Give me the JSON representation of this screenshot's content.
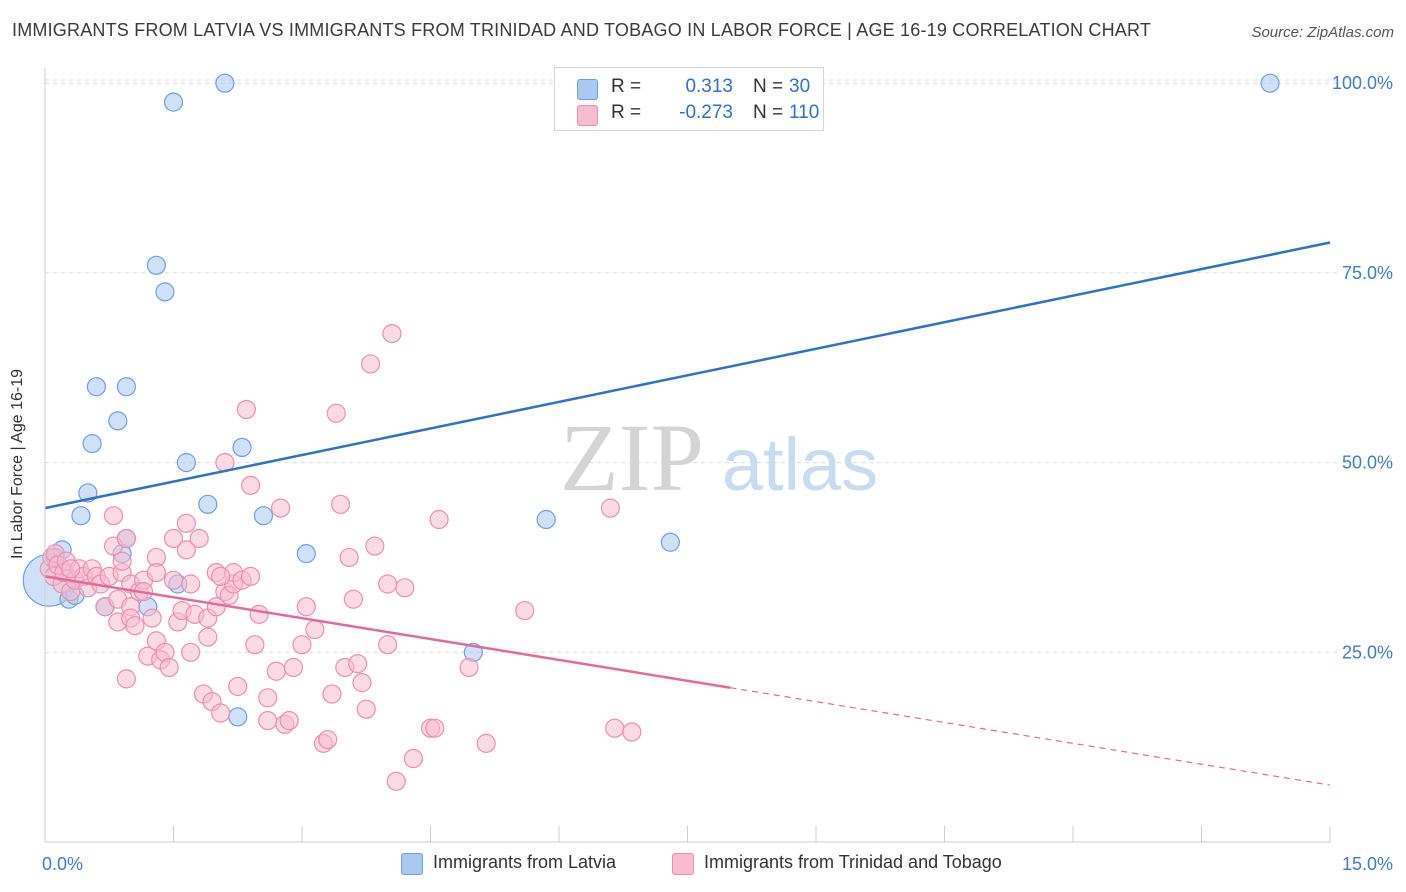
{
  "header": {
    "title": "IMMIGRANTS FROM LATVIA VS IMMIGRANTS FROM TRINIDAD AND TOBAGO IN LABOR FORCE | AGE 16-19 CORRELATION CHART",
    "source": "Source: ZipAtlas.com"
  },
  "watermark": {
    "zip": "ZIP",
    "atlas": "atlas"
  },
  "legend": {
    "rows": [
      {
        "r_label": "R =",
        "r_value": "0.313",
        "n_label": "N =",
        "n_value": "30",
        "color": "#6f9fe0"
      },
      {
        "r_label": "R =",
        "r_value": "-0.273",
        "n_label": "N =",
        "n_value": "110",
        "color": "#ee8cae"
      }
    ]
  },
  "colors": {
    "latvia_fill": "#aac8f0",
    "latvia_stroke": "#6f9fe0",
    "latvia_line": "#2f72cc",
    "trinidad_fill": "#f6bcd0",
    "trinidad_stroke": "#ec8fb0",
    "trinidad_line": "#e5699a",
    "grid": "#dcdcdc",
    "tick_label": "#3f7bd0"
  },
  "chart_data": {
    "type": "scatter",
    "title": "IMMIGRANTS FROM LATVIA VS IMMIGRANTS FROM TRINIDAD AND TOBAGO IN LABOR FORCE | AGE 16-19 CORRELATION CHART",
    "xlabel": "",
    "ylabel": "In Labor Force | Age 16-19",
    "xlim": [
      0,
      15
    ],
    "ylim": [
      0,
      102
    ],
    "x_tick_labels": [
      "0.0%",
      "15.0%"
    ],
    "y_ticks": [
      25,
      50,
      75,
      100
    ],
    "y_tick_labels": [
      "25.0%",
      "50.0%",
      "75.0%",
      "100.0%"
    ],
    "grid": true,
    "legend_position": "top-center",
    "series": [
      {
        "name": "Immigrants from Latvia",
        "R": 0.313,
        "N": 30,
        "trend": {
          "x": [
            0,
            15
          ],
          "y": [
            44.0,
            79.0
          ],
          "dashed_from": null
        },
        "points": [
          [
            0.05,
            34.5,
            26
          ],
          [
            0.12,
            37.5,
            9
          ],
          [
            0.2,
            38.5,
            9
          ],
          [
            0.28,
            32,
            9
          ],
          [
            0.35,
            32.5,
            9
          ],
          [
            0.42,
            43,
            9
          ],
          [
            0.5,
            46,
            9
          ],
          [
            0.55,
            52.5,
            9
          ],
          [
            0.6,
            60,
            9
          ],
          [
            0.7,
            31,
            9
          ],
          [
            0.85,
            55.5,
            9
          ],
          [
            0.9,
            38,
            9
          ],
          [
            0.95,
            40,
            9
          ],
          [
            0.95,
            60,
            9
          ],
          [
            1.2,
            31,
            9
          ],
          [
            1.3,
            76,
            9
          ],
          [
            1.4,
            72.5,
            9
          ],
          [
            1.5,
            97.5,
            9
          ],
          [
            1.55,
            34,
            9
          ],
          [
            1.65,
            50,
            9
          ],
          [
            1.9,
            44.5,
            9
          ],
          [
            2.1,
            100,
            9
          ],
          [
            2.25,
            16.5,
            9
          ],
          [
            2.3,
            52,
            9
          ],
          [
            2.55,
            43,
            9
          ],
          [
            3.05,
            38,
            9
          ],
          [
            5.0,
            25,
            9
          ],
          [
            5.85,
            42.5,
            9
          ],
          [
            7.3,
            39.5,
            9
          ],
          [
            14.3,
            100,
            9
          ]
        ]
      },
      {
        "name": "Immigrants from Trinidad and Tobago",
        "R": -0.273,
        "N": 110,
        "trend": {
          "x": [
            0,
            15
          ],
          "y": [
            35.0,
            7.5
          ],
          "dashed_from": 8.0
        },
        "points": [
          [
            0.05,
            36,
            9
          ],
          [
            0.08,
            37.5,
            9
          ],
          [
            0.1,
            35,
            9
          ],
          [
            0.12,
            38,
            9
          ],
          [
            0.15,
            36.5,
            9
          ],
          [
            0.2,
            34,
            9
          ],
          [
            0.22,
            35.5,
            9
          ],
          [
            0.25,
            37,
            9
          ],
          [
            0.3,
            33,
            9
          ],
          [
            0.35,
            34.5,
            9
          ],
          [
            0.4,
            36,
            9
          ],
          [
            0.45,
            35,
            9
          ],
          [
            0.5,
            33.5,
            9
          ],
          [
            0.55,
            36,
            9
          ],
          [
            0.6,
            35,
            9
          ],
          [
            0.65,
            34,
            9
          ],
          [
            0.7,
            31,
            9
          ],
          [
            0.75,
            35,
            9
          ],
          [
            0.8,
            39,
            9
          ],
          [
            0.8,
            43,
            9
          ],
          [
            0.85,
            32,
            9
          ],
          [
            0.85,
            29,
            9
          ],
          [
            0.9,
            35.5,
            9
          ],
          [
            0.9,
            37,
            9
          ],
          [
            0.95,
            21.5,
            9
          ],
          [
            0.95,
            40,
            9
          ],
          [
            1.0,
            34,
            9
          ],
          [
            1.0,
            31,
            9
          ],
          [
            1.0,
            29.5,
            9
          ],
          [
            1.05,
            28.5,
            9
          ],
          [
            1.1,
            33,
            9
          ],
          [
            1.15,
            34.5,
            9
          ],
          [
            1.15,
            33,
            9
          ],
          [
            1.2,
            24.5,
            9
          ],
          [
            1.25,
            29.5,
            9
          ],
          [
            1.3,
            26.5,
            9
          ],
          [
            1.3,
            37.5,
            9
          ],
          [
            1.3,
            35.5,
            9
          ],
          [
            1.35,
            24,
            9
          ],
          [
            1.4,
            25,
            9
          ],
          [
            1.45,
            23,
            9
          ],
          [
            1.5,
            40,
            9
          ],
          [
            1.5,
            34.5,
            9
          ],
          [
            1.55,
            29,
            9
          ],
          [
            1.6,
            30.5,
            9
          ],
          [
            1.65,
            42,
            9
          ],
          [
            1.65,
            38.5,
            9
          ],
          [
            1.7,
            34,
            9
          ],
          [
            1.7,
            25,
            9
          ],
          [
            1.75,
            30,
            9
          ],
          [
            1.8,
            40,
            9
          ],
          [
            1.85,
            19.5,
            9
          ],
          [
            1.9,
            29.5,
            9
          ],
          [
            1.9,
            27,
            9
          ],
          [
            1.95,
            18.5,
            9
          ],
          [
            2.0,
            31,
            9
          ],
          [
            2.0,
            35.5,
            9
          ],
          [
            2.05,
            17,
            9
          ],
          [
            2.1,
            50,
            9
          ],
          [
            2.1,
            33,
            9
          ],
          [
            2.15,
            32.5,
            9
          ],
          [
            2.2,
            34,
            9
          ],
          [
            2.2,
            35.5,
            9
          ],
          [
            2.25,
            20.5,
            9
          ],
          [
            2.3,
            34.5,
            9
          ],
          [
            2.35,
            57,
            9
          ],
          [
            2.4,
            47,
            9
          ],
          [
            2.4,
            35,
            9
          ],
          [
            2.45,
            26,
            9
          ],
          [
            2.5,
            30,
            9
          ],
          [
            2.6,
            16,
            9
          ],
          [
            2.6,
            19,
            9
          ],
          [
            2.7,
            22.5,
            9
          ],
          [
            2.75,
            44,
            9
          ],
          [
            2.8,
            15.5,
            9
          ],
          [
            2.85,
            16,
            9
          ],
          [
            2.9,
            23,
            9
          ],
          [
            3.0,
            26,
            9
          ],
          [
            3.05,
            31,
            9
          ],
          [
            3.15,
            28,
            9
          ],
          [
            3.25,
            13,
            9
          ],
          [
            3.3,
            13.5,
            9
          ],
          [
            3.35,
            19.5,
            9
          ],
          [
            3.4,
            56.5,
            9
          ],
          [
            3.45,
            44.5,
            9
          ],
          [
            3.5,
            23,
            9
          ],
          [
            3.55,
            37.5,
            9
          ],
          [
            3.6,
            32,
            9
          ],
          [
            3.65,
            23.5,
            9
          ],
          [
            3.7,
            21,
            9
          ],
          [
            3.75,
            17.5,
            9
          ],
          [
            3.8,
            63,
            9
          ],
          [
            3.85,
            39,
            9
          ],
          [
            4.0,
            26,
            9
          ],
          [
            4.0,
            34,
            9
          ],
          [
            4.05,
            67,
            9
          ],
          [
            4.1,
            8,
            9
          ],
          [
            4.2,
            33.5,
            9
          ],
          [
            4.3,
            11,
            9
          ],
          [
            4.5,
            15,
            9
          ],
          [
            4.55,
            15,
            9
          ],
          [
            4.6,
            42.5,
            9
          ],
          [
            4.95,
            23,
            9
          ],
          [
            5.15,
            13,
            9
          ],
          [
            5.6,
            30.5,
            9
          ],
          [
            6.6,
            44,
            9
          ],
          [
            6.65,
            15,
            9
          ],
          [
            6.85,
            14.5,
            9
          ],
          [
            2.05,
            35,
            9
          ],
          [
            0.3,
            36,
            9
          ]
        ]
      }
    ]
  },
  "bottom_legend": {
    "items": [
      {
        "label": "Immigrants from Latvia"
      },
      {
        "label": "Immigrants from Trinidad and Tobago"
      }
    ]
  }
}
